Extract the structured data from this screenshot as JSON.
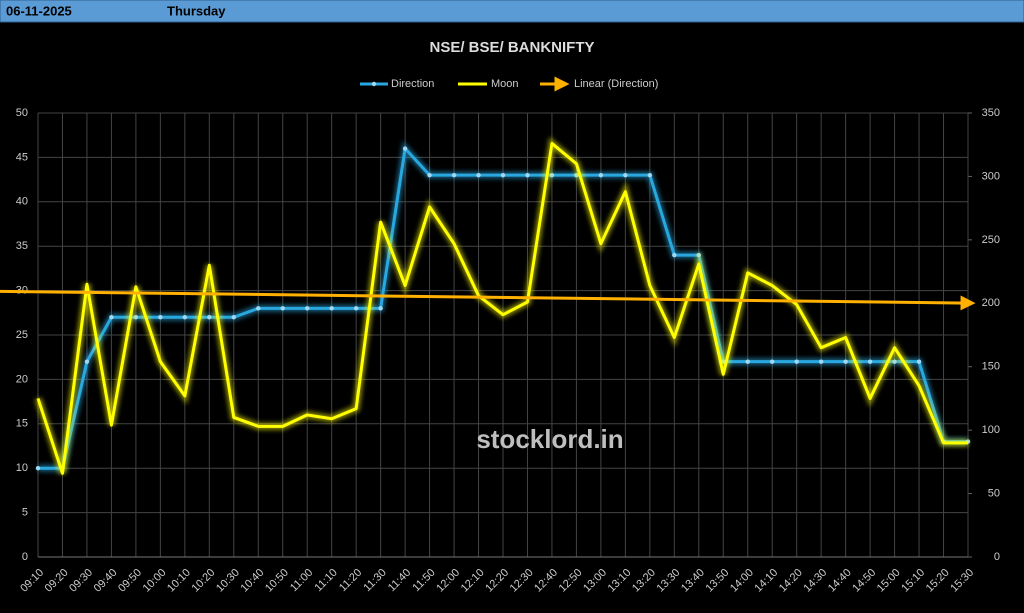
{
  "header": {
    "date": "06-11-2025",
    "day": "Thursday"
  },
  "watermark": "stocklord.in",
  "chart_data": {
    "type": "line",
    "title": "NSE/ BSE/ BANKNIFTY",
    "categories": [
      "09:10",
      "09:20",
      "09:30",
      "09:40",
      "09:50",
      "10:00",
      "10:10",
      "10:20",
      "10:30",
      "10:40",
      "10:50",
      "11:00",
      "11:10",
      "11:20",
      "11:30",
      "11:40",
      "11:50",
      "12:00",
      "12:10",
      "12:20",
      "12:30",
      "12:40",
      "12:50",
      "13:00",
      "13:10",
      "13:20",
      "13:30",
      "13:40",
      "13:50",
      "14:00",
      "14:10",
      "14:20",
      "14:30",
      "14:40",
      "14:50",
      "15:00",
      "15:10",
      "15:20",
      "15:30"
    ],
    "series": [
      {
        "name": "Direction",
        "color": "#29a8e0",
        "axis": "y",
        "values": [
          10,
          10,
          22,
          27,
          27,
          27,
          27,
          27,
          27,
          28,
          28,
          28,
          28,
          28,
          28,
          46,
          43,
          43,
          43,
          43,
          43,
          43,
          43,
          43,
          43,
          43,
          34,
          34,
          22,
          22,
          22,
          22,
          22,
          22,
          22,
          22,
          22,
          13,
          13
        ]
      },
      {
        "name": "Moon",
        "color": "#ffff00",
        "axis": "y2",
        "values": [
          125,
          66,
          215,
          104,
          213,
          154,
          127,
          230,
          110,
          103,
          103,
          112,
          109,
          117,
          264,
          214,
          276,
          247,
          206,
          191,
          201,
          326,
          310,
          247,
          288,
          214,
          173,
          231,
          144,
          224,
          214,
          199,
          165,
          173,
          125,
          165,
          135,
          90,
          90
        ]
      }
    ],
    "trendline": {
      "name": "Linear (Direction)",
      "color": "#ffb000",
      "series": 0
    },
    "ylim": [
      0,
      50
    ],
    "yticks": [
      0,
      5,
      10,
      15,
      20,
      25,
      30,
      35,
      40,
      45,
      50
    ],
    "y2lim": [
      0,
      350
    ],
    "y2ticks": [
      0,
      50,
      100,
      150,
      200,
      250,
      300,
      350
    ],
    "grid": true
  }
}
